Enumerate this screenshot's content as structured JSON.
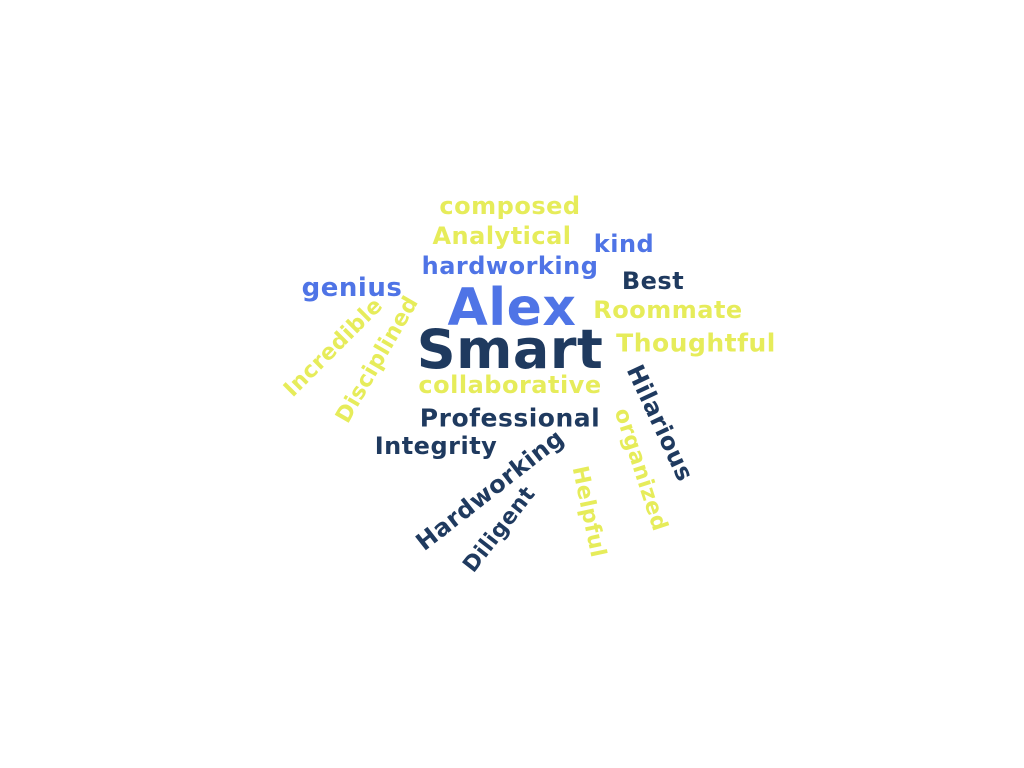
{
  "words": {
    "alex": "Alex",
    "smart": "Smart",
    "composed": "composed",
    "analytical": "Analytical",
    "kind": "kind",
    "hardworking": "hardworking",
    "best": "Best",
    "genius": "genius",
    "roommate": "Roommate",
    "thoughtful": "Thoughtful",
    "collaborative": "collaborative",
    "professional": "Professional",
    "integrity": "Integrity",
    "incredible": "Incredible",
    "disciplined": "Disciplined",
    "hilarious": "Hilarious",
    "organized": "organized",
    "hardworking_cap": "Hardworking",
    "diligent": "Diligent",
    "helpful": "Helpful"
  },
  "colors": {
    "navy": "#1f3a5f",
    "blue": "#4f74e6",
    "yellow": "#e6ec5a"
  }
}
